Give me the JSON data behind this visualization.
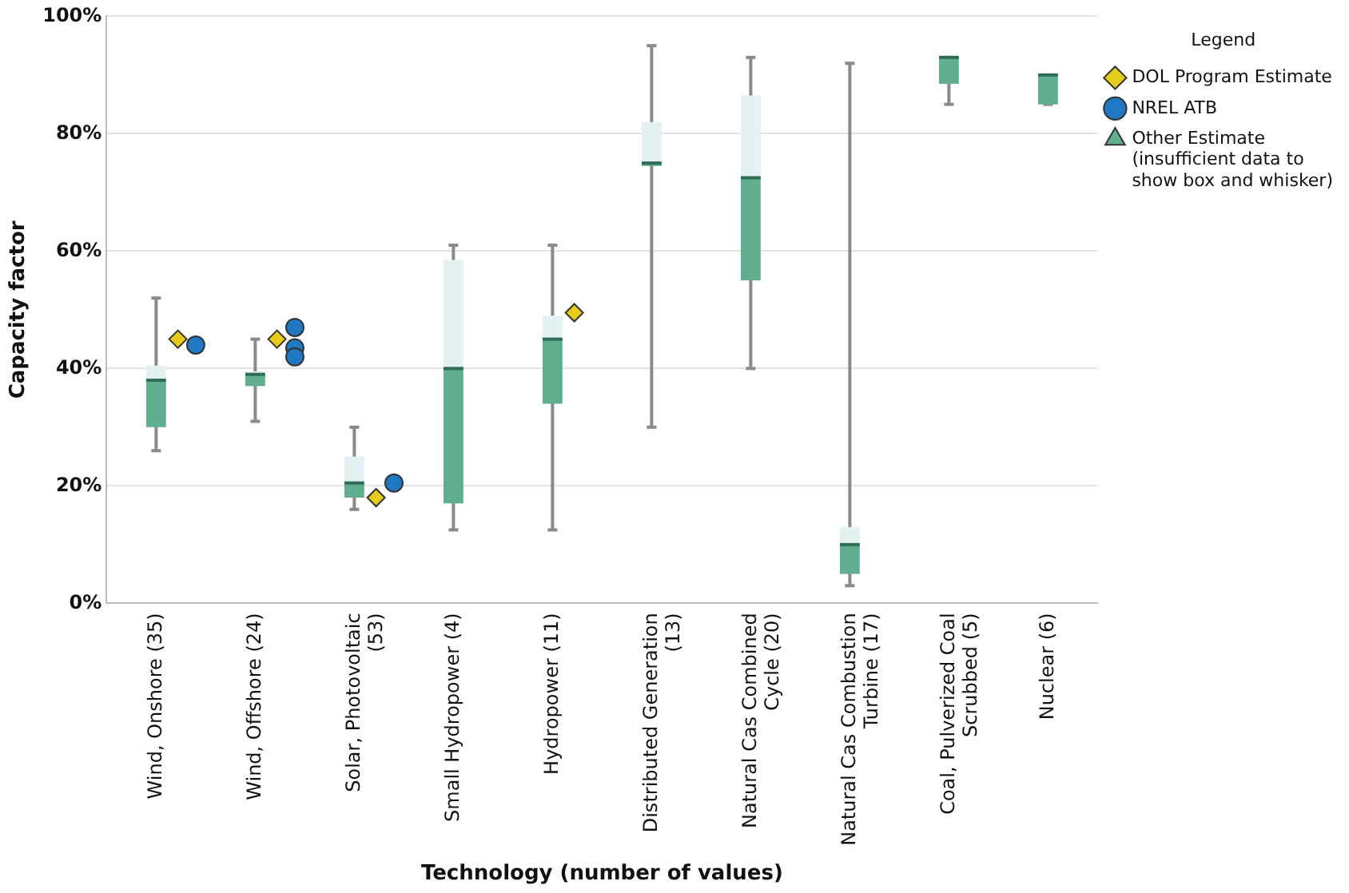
{
  "chart_data": {
    "type": "box",
    "xlabel": "Technology (number of values)",
    "ylabel": "Capacity factor",
    "legend_title": "Legend",
    "legend": "top right",
    "grid": "y",
    "categories": [
      "Wind, Onshore (35)",
      "Wind, Offshore (24)",
      "Solar, Photovoltaic (53)",
      "Small Hydropower (4)",
      "Hydropower (11)",
      "Distributed Generation (13)",
      "Natural Cas Combined Cycle (20)",
      "Natural Cas Combustion Turbine (17)",
      "Coal, Pulverized Coal Scrubbed (5)",
      "Nuclear (6)"
    ],
    "ylim": [
      0,
      100
    ],
    "yticks": [
      {
        "value": 0,
        "label": "0%"
      },
      {
        "value": 20,
        "label": "20%"
      },
      {
        "value": 40,
        "label": "40%"
      },
      {
        "value": 60,
        "label": "60%"
      },
      {
        "value": 80,
        "label": "80%"
      },
      {
        "value": 100,
        "label": "100%"
      }
    ],
    "series": [
      {
        "color": "#5fae8e",
        "boxes": [
          {
            "low": 26,
            "q1": 30,
            "median": 38,
            "q3": 40.5,
            "high": 52
          },
          {
            "low": 31,
            "q1": 37,
            "median": 39,
            "q3": 39.5,
            "high": 45
          },
          {
            "low": 16,
            "q1": 18,
            "median": 20.5,
            "q3": 25,
            "high": 30
          },
          {
            "low": 12.5,
            "q1": 17,
            "median": 40,
            "q3": 58.5,
            "high": 61
          },
          {
            "low": 12.5,
            "q1": 34,
            "median": 45,
            "q3": 49,
            "high": 61
          },
          {
            "low": 30,
            "q1": 74.5,
            "median": 75,
            "q3": 82,
            "high": 95
          },
          {
            "low": 40,
            "q1": 55,
            "median": 72.5,
            "q3": 86.5,
            "high": 93
          },
          {
            "low": 3,
            "q1": 5,
            "median": 10,
            "q3": 13,
            "high": 92
          },
          {
            "low": 85,
            "q1": 88.5,
            "median": 93,
            "q3": 93,
            "high": 93
          },
          {
            "low": 85,
            "q1": 85,
            "median": 90,
            "q3": 90,
            "high": 90
          }
        ]
      },
      {
        "type": "scatter",
        "name": "DOL Program Estimate",
        "color": "#e8cc1c",
        "marker": "diamond",
        "x": [
          "Wind, Onshore (35)",
          "Wind, Offshore (24)",
          "Solar, Photovoltaic (53)",
          "Hydropower (11)"
        ],
        "values": [
          45,
          45,
          18,
          49.5
        ]
      },
      {
        "type": "scatter",
        "name": "NREL ATB",
        "color": "#1f78c1",
        "marker": "circle",
        "x": [
          "Wind, Onshore (35)",
          "Wind, Offshore (24)",
          "Wind, Offshore (24)",
          "Wind, Offshore (24)",
          "Solar, Photovoltaic (53)"
        ],
        "values": [
          44,
          47,
          43.5,
          42,
          20.5
        ]
      },
      {
        "type": "scatter",
        "name": "Other Estimate (insufficient data to show box and whisker)",
        "color": "#5fae8e",
        "marker": "triangle",
        "values": [
          null,
          null,
          null,
          null,
          null,
          null,
          null,
          null,
          null,
          null
        ]
      }
    ]
  }
}
